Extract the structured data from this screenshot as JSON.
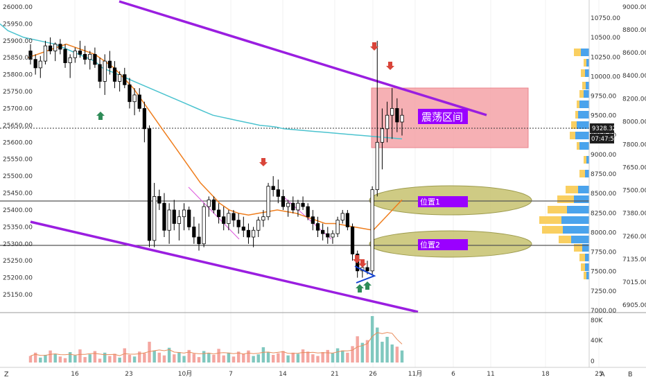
{
  "chart_data": {
    "type": "candlestick",
    "left_axis": {
      "ticks": [
        "26000.00",
        "25950.00",
        "25900.00",
        "25850.00",
        "25800.00",
        "25750.00",
        "25700.00",
        "25650.00",
        "25600.00",
        "25550.00",
        "25500.00",
        "25450.00",
        "25400.00",
        "25350.00",
        "25300.00",
        "25250.00",
        "25200.00",
        "25150.00"
      ],
      "tick_values": [
        26000,
        25950,
        25900,
        25850,
        25800,
        25750,
        25700,
        25650,
        25600,
        25550,
        25500,
        25450,
        25400,
        25350,
        25300,
        25250,
        25200,
        25150
      ]
    },
    "right_axis_inner": {
      "ticks": [
        "10750.00",
        "10500.00",
        "10250.00",
        "10000.00",
        "9750.00",
        "9500.00",
        "9250.00",
        "9000.00",
        "8750.00",
        "8500.00",
        "8250.00",
        "8000.00",
        "7750.00",
        "7500.00",
        "7250.00",
        "7000.00"
      ],
      "tick_values": [
        10750,
        10500,
        10250,
        10000,
        9750,
        9500,
        9250,
        9000,
        8750,
        8500,
        8250,
        8000,
        7750,
        7500,
        7250,
        7000
      ]
    },
    "right_axis_outer": {
      "ticks": [
        "9000.00",
        "8800.00",
        "8600.00",
        "8400.00",
        "8200.00",
        "8000.00",
        "7800.00",
        "7650.00",
        "7500.00",
        "7380.00",
        "7260.00",
        "7135.00",
        "7015.00",
        "6905.00"
      ]
    },
    "price_tag": "9328.32",
    "countdown_tag": "07:47:59",
    "volume_axis": {
      "ticks": [
        "80K",
        "40K",
        "0"
      ],
      "tick_values": [
        80000,
        40000,
        0
      ]
    },
    "x_axis": {
      "labels": [
        "16",
        "23",
        "10月",
        "7",
        "14",
        "21",
        "26",
        "11月",
        "6",
        "11",
        "18",
        "25"
      ],
      "bottom_left": "Z",
      "bottom_right_a": "A",
      "bottom_right_b": "B"
    },
    "candles_ohlc": [
      [
        25870,
        25890,
        25830,
        25845
      ],
      [
        25845,
        25860,
        25800,
        25820
      ],
      [
        25820,
        25855,
        25790,
        25840
      ],
      [
        25840,
        25900,
        25830,
        25885
      ],
      [
        25885,
        25910,
        25860,
        25870
      ],
      [
        25870,
        25895,
        25840,
        25890
      ],
      [
        25890,
        25905,
        25860,
        25875
      ],
      [
        25875,
        25890,
        25820,
        25835
      ],
      [
        25835,
        25860,
        25790,
        25850
      ],
      [
        25850,
        25880,
        25835,
        25870
      ],
      [
        25870,
        25900,
        25850,
        25860
      ],
      [
        25860,
        25885,
        25830,
        25845
      ],
      [
        25845,
        25870,
        25815,
        25860
      ],
      [
        25860,
        25880,
        25820,
        25830
      ],
      [
        25830,
        25850,
        25760,
        25780
      ],
      [
        25780,
        25860,
        25740,
        25840
      ],
      [
        25840,
        25870,
        25800,
        25820
      ],
      [
        25820,
        25840,
        25760,
        25780
      ],
      [
        25780,
        25810,
        25750,
        25800
      ],
      [
        25800,
        25820,
        25760,
        25770
      ],
      [
        25770,
        25790,
        25700,
        25720
      ],
      [
        25720,
        25760,
        25680,
        25740
      ],
      [
        25740,
        25760,
        25690,
        25700
      ],
      [
        25700,
        25720,
        25600,
        25640
      ],
      [
        25640,
        25650,
        25290,
        25310
      ],
      [
        25310,
        25480,
        25290,
        25440
      ],
      [
        25440,
        25460,
        25400,
        25420
      ],
      [
        25420,
        25450,
        25320,
        25340
      ],
      [
        25340,
        25420,
        25300,
        25400
      ],
      [
        25400,
        25430,
        25340,
        25360
      ],
      [
        25360,
        25400,
        25310,
        25380
      ],
      [
        25380,
        25420,
        25340,
        25400
      ],
      [
        25400,
        25410,
        25340,
        25350
      ],
      [
        25350,
        25380,
        25300,
        25320
      ],
      [
        25320,
        25360,
        25280,
        25300
      ],
      [
        25300,
        25420,
        25290,
        25410
      ],
      [
        25410,
        25440,
        25380,
        25430
      ],
      [
        25430,
        25440,
        25390,
        25400
      ],
      [
        25400,
        25420,
        25360,
        25380
      ],
      [
        25380,
        25410,
        25340,
        25360
      ],
      [
        25360,
        25400,
        25340,
        25390
      ],
      [
        25390,
        25400,
        25350,
        25370
      ],
      [
        25370,
        25390,
        25330,
        25350
      ],
      [
        25350,
        25380,
        25320,
        25340
      ],
      [
        25340,
        25360,
        25300,
        25320
      ],
      [
        25320,
        25350,
        25290,
        25340
      ],
      [
        25340,
        25380,
        25320,
        25370
      ],
      [
        25370,
        25400,
        25350,
        25380
      ],
      [
        25380,
        25480,
        25370,
        25470
      ],
      [
        25470,
        25500,
        25440,
        25460
      ],
      [
        25460,
        25490,
        25420,
        25440
      ],
      [
        25440,
        25460,
        25400,
        25410
      ],
      [
        25410,
        25430,
        25380,
        25420
      ],
      [
        25420,
        25440,
        25390,
        25400
      ],
      [
        25400,
        25430,
        25380,
        25420
      ],
      [
        25420,
        25440,
        25400,
        25410
      ],
      [
        25410,
        25420,
        25370,
        25380
      ],
      [
        25380,
        25400,
        25340,
        25360
      ],
      [
        25360,
        25380,
        25320,
        25340
      ],
      [
        25340,
        25360,
        25310,
        25330
      ],
      [
        25330,
        25350,
        25300,
        25320
      ],
      [
        25320,
        25340,
        25300,
        25330
      ],
      [
        25330,
        25380,
        25320,
        25370
      ],
      [
        25370,
        25400,
        25360,
        25390
      ],
      [
        25390,
        25400,
        25340,
        25350
      ],
      [
        25350,
        25360,
        25250,
        25270
      ],
      [
        25270,
        25280,
        25200,
        25220
      ],
      [
        25220,
        25240,
        25200,
        25230
      ],
      [
        25230,
        25250,
        25210,
        25220
      ],
      [
        25220,
        25470,
        25210,
        25460
      ],
      [
        25460,
        25900,
        25440,
        25600
      ],
      [
        25600,
        25700,
        25520,
        25640
      ],
      [
        25640,
        25720,
        25600,
        25680
      ],
      [
        25680,
        25760,
        25610,
        25700
      ],
      [
        25700,
        25730,
        25630,
        25660
      ],
      [
        25660,
        25700,
        25620,
        25680
      ]
    ],
    "ema_fast": [
      [
        25950,
        25930
      ],
      [
        25920,
        25910
      ],
      [
        25905,
        25900
      ],
      [
        25895,
        25890
      ],
      [
        25880,
        25870
      ],
      [
        25860,
        25850
      ],
      [
        25840,
        25820
      ],
      [
        25810,
        25800
      ],
      [
        25790,
        25780
      ],
      [
        25770,
        25760
      ],
      [
        25750,
        25740
      ],
      [
        25730,
        25720
      ],
      [
        25710,
        25700
      ],
      [
        25690,
        25680
      ],
      [
        25675,
        25670
      ],
      [
        25665,
        25660
      ],
      [
        25655,
        25650
      ],
      [
        25648,
        25645
      ],
      [
        25640,
        25638
      ],
      [
        25636,
        25634
      ],
      [
        25632,
        25630
      ],
      [
        25628,
        25626
      ],
      [
        25624,
        25622
      ],
      [
        25620,
        25618
      ],
      [
        25616,
        25614
      ],
      [
        25612,
        25610
      ]
    ],
    "ema_slow": [
      [
        25850,
        25860
      ],
      [
        25870,
        25880
      ],
      [
        25890,
        25880
      ],
      [
        25870,
        25860
      ],
      [
        25840,
        25820
      ],
      [
        25790,
        25760
      ],
      [
        25720,
        25680
      ],
      [
        25640,
        25600
      ],
      [
        25560,
        25520
      ],
      [
        25480,
        25450
      ],
      [
        25420,
        25400
      ],
      [
        25390,
        25385
      ],
      [
        25390,
        25395
      ],
      [
        25400,
        25395
      ],
      [
        25390,
        25380
      ],
      [
        25370,
        25360
      ],
      [
        25360,
        25355
      ],
      [
        25350,
        25345
      ],
      [
        25340,
        25370
      ],
      [
        25400,
        25430
      ]
    ],
    "volume": [
      12,
      18,
      9,
      14,
      22,
      16,
      11,
      8,
      19,
      13,
      24,
      10,
      15,
      21,
      7,
      18,
      12,
      16,
      9,
      26,
      14,
      11,
      20,
      17,
      38,
      22,
      18,
      13,
      27,
      15,
      19,
      12,
      23,
      16,
      10,
      21,
      17,
      14,
      25,
      13,
      18,
      11,
      20,
      16,
      22,
      12,
      15,
      28,
      19,
      14,
      17,
      21,
      13,
      18,
      16,
      24,
      20,
      15,
      12,
      19,
      23,
      17,
      26,
      22,
      18,
      30,
      48,
      36,
      41,
      85,
      64,
      38,
      47,
      33,
      29,
      22
    ],
    "annotations": {
      "oscillation_zone_label": "震荡区间",
      "level1_label": "位置1",
      "level2_label": "位置2"
    },
    "colors": {
      "up": "#26a69a",
      "down": "#000000",
      "channel": "#9a1ee0",
      "ema_fast": "#4bc3cf",
      "ema_slow": "#ef7d1c",
      "zone_fill": "#f5a3a8",
      "ellipse_fill": "#c7c26f",
      "arrow_red": "#d9453a",
      "arrow_green": "#2e8b57",
      "label_bg": "#9a00ff",
      "vol_up": "#80c8bf",
      "vol_down": "#f4a6a0",
      "profile_blue": "#4aa3ec",
      "profile_yellow": "#f9cf61"
    },
    "title": "",
    "xlabel": "",
    "ylabel": ""
  }
}
